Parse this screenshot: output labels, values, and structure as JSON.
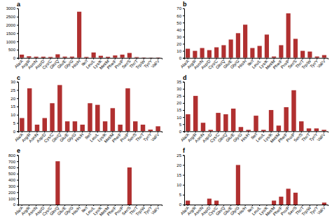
{
  "chart_data": [
    {
      "type": "bar",
      "title": "a",
      "categories": [
        "Ala/A",
        "Arg/R",
        "Asn/N",
        "Asp/D",
        "Cys/C",
        "Gln/Q",
        "Glu/E",
        "Gly/G",
        "His/H",
        "Ile/I",
        "Leu/L",
        "Lys/K",
        "Met/M",
        "Phe/F",
        "Pro/P",
        "Ser/S",
        "Thr/T",
        "Trp/W",
        "Tyr/Y",
        "Val/V"
      ],
      "values": [
        200,
        100,
        75,
        75,
        60,
        220,
        80,
        80,
        2800,
        60,
        330,
        130,
        70,
        150,
        200,
        300,
        50,
        30,
        20,
        30
      ],
      "color": "#b03030",
      "ylim": [
        0,
        3000
      ],
      "yticks": [
        0,
        500,
        1000,
        1500,
        2000,
        2500,
        3000
      ]
    },
    {
      "type": "bar",
      "title": "b",
      "categories": [
        "Ala/A",
        "Arg/R",
        "Asn/N",
        "Asp/D",
        "Cys/C",
        "Gln/Q",
        "Glu/E",
        "Gly/G",
        "His/H",
        "Ile/I",
        "Leu/L",
        "Lys/K",
        "Met/M",
        "Phe/F",
        "Pro/P",
        "Ser/S",
        "Thr/T",
        "Trp/W",
        "Tyr/Y",
        "Val/V"
      ],
      "values": [
        13,
        10,
        14,
        11,
        15,
        18,
        26,
        35,
        47,
        14,
        17,
        33,
        2,
        18,
        63,
        27,
        10,
        9,
        2,
        4
      ],
      "color": "#b03030",
      "ylim": [
        0,
        70
      ],
      "yticks": [
        0,
        10,
        20,
        30,
        40,
        50,
        60,
        70
      ]
    },
    {
      "type": "bar",
      "title": "c",
      "categories": [
        "Ala/A",
        "Arg/R",
        "Asn/N",
        "Asp/D",
        "Cys/C",
        "Gln/Q",
        "Glu/E",
        "Gly/G",
        "His/H",
        "Ile/I",
        "Leu/L",
        "Lys/K",
        "Met/M",
        "Phe/F",
        "Pro/P",
        "Ser/S",
        "Thr/T",
        "Tyr/Y",
        "Val/V"
      ],
      "values": [
        8,
        26,
        4,
        8,
        17,
        28,
        6,
        6,
        4,
        17,
        16,
        6,
        14,
        4,
        26,
        6,
        4,
        1,
        3
      ],
      "color": "#b03030",
      "ylim": [
        0,
        30
      ],
      "yticks": [
        0,
        5,
        10,
        15,
        20,
        25,
        30
      ]
    },
    {
      "type": "bar",
      "title": "d",
      "categories": [
        "Ala/A",
        "Arg/R",
        "Asn/N",
        "Asp/D",
        "Cys/C",
        "Gln/Q",
        "Glu/E",
        "Gly/G",
        "His/H",
        "Ile/I",
        "Leu/L",
        "Lys/K",
        "Met/M",
        "Phe/F",
        "Pro/P",
        "Ser/S",
        "Thr/T",
        "Tyr/Y",
        "Val/V"
      ],
      "values": [
        12,
        25,
        6,
        1,
        13,
        12,
        16,
        3,
        1,
        11,
        1,
        15,
        4,
        17,
        29,
        7,
        2,
        2,
        1
      ],
      "color": "#b03030",
      "ylim": [
        0,
        35
      ],
      "yticks": [
        0,
        5,
        10,
        15,
        20,
        25,
        30,
        35
      ]
    },
    {
      "type": "bar",
      "title": "e",
      "categories": [
        "Ala/A",
        "Arg/R",
        "Asn/N",
        "Asp/D",
        "Cys/C",
        "Gln/Q",
        "Glu/E",
        "Gly/G",
        "His/H",
        "Ile/I",
        "Leu/L",
        "Lys/K",
        "Met/M",
        "Phe/F",
        "Pro/P",
        "Ser/S",
        "Thr/T",
        "Trp/W",
        "Tyr/Y",
        "Val/V"
      ],
      "values": [
        0,
        0,
        0,
        0,
        0,
        700,
        0,
        0,
        0,
        0,
        0,
        0,
        0,
        0,
        0,
        600,
        0,
        0,
        0,
        0
      ],
      "color": "#b03030",
      "ylim": [
        0,
        800
      ],
      "yticks": [
        0,
        100,
        200,
        300,
        400,
        500,
        600,
        700,
        800
      ]
    },
    {
      "type": "bar",
      "title": "f",
      "categories": [
        "Ala/A",
        "Arg/R",
        "Asn/N",
        "Asp/D",
        "Cys/C",
        "Gln/Q",
        "Glu/E",
        "Gly/G",
        "His/H",
        "Ile/I",
        "Leu/L",
        "Lys/K",
        "Met/M",
        "Phe/F",
        "Pro/P",
        "Ser/S",
        "Thr/T",
        "Trp/W",
        "Tyr/Y",
        "Val/V"
      ],
      "values": [
        2,
        0,
        0,
        3,
        2,
        0,
        0,
        20,
        0,
        0,
        0,
        0,
        2,
        4,
        8,
        6,
        0,
        0,
        0,
        1
      ],
      "color": "#b03030",
      "ylim": [
        0,
        25
      ],
      "yticks": [
        0,
        5,
        10,
        15,
        20,
        25
      ]
    }
  ]
}
